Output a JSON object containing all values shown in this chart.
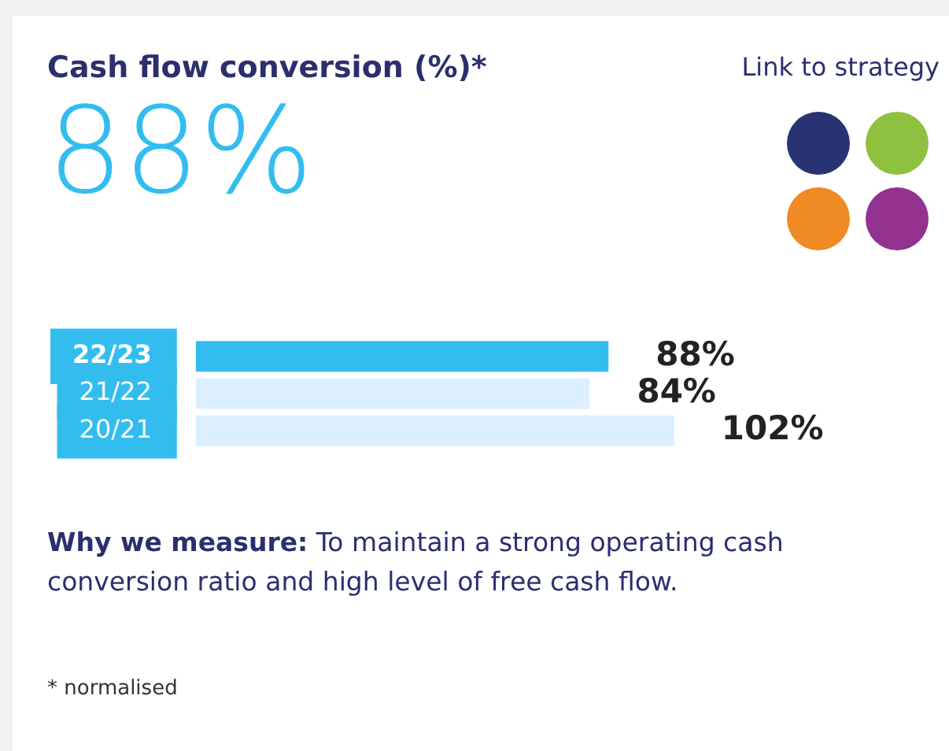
{
  "chart_data": {
    "type": "bar",
    "orientation": "horizontal",
    "title": "Cash flow conversion (%)*",
    "categories": [
      "22/23",
      "21/22",
      "20/21"
    ],
    "values": [
      88,
      84,
      102
    ],
    "colors": [
      "#33bdef",
      "#dcefff",
      "#dcefff"
    ],
    "value_labels": [
      "88%",
      "84%",
      "102%"
    ],
    "annotations": [
      "88%",
      "Link to strategy",
      "Why we measure:",
      "To maintain a strong operating cash conversion ratio and high level of free cash flow.",
      "* normalised"
    ],
    "grid": false,
    "legend": false
  }
}
